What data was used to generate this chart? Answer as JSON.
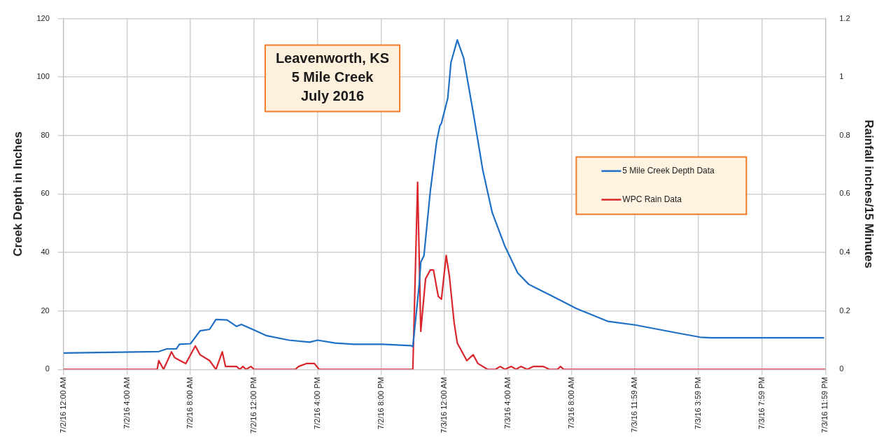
{
  "chart_data": {
    "type": "line",
    "title": "Leavenworth, KS\n5 Mile Creek\nJuly 2016",
    "ylabel": "Creek Depth in Inches",
    "y2label": "Rainfall inches/15 Minutes",
    "xlim": [
      "2016-07-02T00:00",
      "2016-07-03T23:59"
    ],
    "xticks": [
      {
        "value": "2016-07-02T00:00",
        "label": "7/2/16 12:00 AM"
      },
      {
        "value": "2016-07-02T04:00",
        "label": "7/2/16 4:00 AM"
      },
      {
        "value": "2016-07-02T08:00",
        "label": "7/2/16 8:00 AM"
      },
      {
        "value": "2016-07-02T12:00",
        "label": "7/2/16 12:00 PM"
      },
      {
        "value": "2016-07-02T16:00",
        "label": "7/2/16 4:00 PM"
      },
      {
        "value": "2016-07-02T20:00",
        "label": "7/2/16 8:00 PM"
      },
      {
        "value": "2016-07-03T00:00",
        "label": "7/3/16 12:00 AM"
      },
      {
        "value": "2016-07-03T04:00",
        "label": "7/3/16 4:00 AM"
      },
      {
        "value": "2016-07-03T08:00",
        "label": "7/3/16 8:00 AM"
      },
      {
        "value": "2016-07-03T11:59",
        "label": "7/3/16 11:59 AM"
      },
      {
        "value": "2016-07-03T15:59",
        "label": "7/3/16 3:59 PM"
      },
      {
        "value": "2016-07-03T19:59",
        "label": "7/3/16 7:59 PM"
      },
      {
        "value": "2016-07-03T23:59",
        "label": "7/3/16 11:59 PM"
      }
    ],
    "ylim": [
      0,
      120
    ],
    "yticks": [
      0,
      20,
      40,
      60,
      80,
      100,
      120
    ],
    "y2lim": [
      0,
      1.2
    ],
    "y2ticks": [
      0,
      0.2,
      0.4,
      0.6,
      0.8,
      1,
      1.2
    ],
    "grid": true,
    "legend": "right",
    "marker": "none",
    "line_style": "solid",
    "series": [
      {
        "name": "5 Mile Creek Depth Data",
        "color": "#1f6fc4",
        "x": [
          "2016-07-02T00:00",
          "2016-07-02T06:00",
          "2016-07-02T06:30",
          "2016-07-02T07:06",
          "2016-07-02T07:18",
          "2016-07-02T08:00",
          "2016-07-02T08:36",
          "2016-07-02T09:12",
          "2016-07-02T09:36",
          "2016-07-02T10:18",
          "2016-07-02T10:54",
          "2016-07-02T11:12",
          "2016-07-02T11:54",
          "2016-07-02T12:48",
          "2016-07-02T14:12",
          "2016-07-02T15:30",
          "2016-07-02T16:00",
          "2016-07-02T17:06",
          "2016-07-02T18:18",
          "2016-07-02T20:06",
          "2016-07-02T21:54",
          "2016-07-02T22:00",
          "2016-07-02T22:24",
          "2016-07-02T22:30",
          "2016-07-02T22:42",
          "2016-07-02T23:06",
          "2016-07-02T23:30",
          "2016-07-02T23:42",
          "2016-07-02T23:48",
          "2016-07-03T00:12",
          "2016-07-03T00:24",
          "2016-07-03T00:48",
          "2016-07-03T01:12",
          "2016-07-03T01:48",
          "2016-07-03T02:24",
          "2016-07-03T03:00",
          "2016-07-03T03:48",
          "2016-07-03T04:36",
          "2016-07-03T05:18",
          "2016-07-03T06:48",
          "2016-07-03T08:18",
          "2016-07-03T10:18",
          "2016-07-03T12:00",
          "2016-07-03T14:36",
          "2016-07-03T16:06",
          "2016-07-03T16:48",
          "2016-07-03T23:54"
        ],
        "values": [
          5.6,
          6.1,
          7,
          7,
          8.6,
          8.8,
          13.2,
          13.7,
          17.1,
          16.9,
          14.7,
          15.4,
          13.7,
          11.5,
          10,
          9.3,
          10,
          9,
          8.6,
          8.6,
          8.1,
          7.8,
          29,
          36.7,
          38.9,
          61,
          78,
          83.3,
          84.2,
          92.8,
          105,
          112.7,
          106.5,
          87.9,
          68.3,
          53.6,
          42.1,
          33,
          29.1,
          25,
          20.8,
          16.4,
          15.2,
          12.5,
          11,
          10.8,
          10.8
        ]
      },
      {
        "name": "WPC Rain Data",
        "color": "#d9262c",
        "axis": "y2",
        "x": [
          "2016-07-02T00:00",
          "2016-07-02T05:54",
          "2016-07-02T06:00",
          "2016-07-02T06:18",
          "2016-07-02T06:48",
          "2016-07-02T07:00",
          "2016-07-02T07:42",
          "2016-07-02T08:18",
          "2016-07-02T08:36",
          "2016-07-02T09:12",
          "2016-07-02T09:36",
          "2016-07-02T10:00",
          "2016-07-02T10:12",
          "2016-07-02T10:54",
          "2016-07-02T11:06",
          "2016-07-02T11:18",
          "2016-07-02T11:30",
          "2016-07-02T11:48",
          "2016-07-02T12:00",
          "2016-07-02T14:36",
          "2016-07-02T14:48",
          "2016-07-02T15:18",
          "2016-07-02T15:48",
          "2016-07-02T16:06",
          "2016-07-02T22:00",
          "2016-07-02T22:18",
          "2016-07-02T22:30",
          "2016-07-02T22:48",
          "2016-07-02T23:06",
          "2016-07-02T23:18",
          "2016-07-02T23:36",
          "2016-07-02T23:48",
          "2016-07-03T00:06",
          "2016-07-03T00:18",
          "2016-07-03T00:36",
          "2016-07-03T00:48",
          "2016-07-03T01:24",
          "2016-07-03T01:48",
          "2016-07-03T02:06",
          "2016-07-03T02:42",
          "2016-07-03T03:12",
          "2016-07-03T03:30",
          "2016-07-03T03:48",
          "2016-07-03T04:12",
          "2016-07-03T04:30",
          "2016-07-03T04:48",
          "2016-07-03T05:12",
          "2016-07-03T05:36",
          "2016-07-03T06:12",
          "2016-07-03T06:36",
          "2016-07-03T07:06",
          "2016-07-03T07:18",
          "2016-07-03T07:30",
          "2016-07-03T23:59"
        ],
        "values": [
          0,
          0,
          0.03,
          0,
          0.06,
          0.04,
          0.02,
          0.08,
          0.05,
          0.03,
          0,
          0.06,
          0.01,
          0.01,
          0,
          0.01,
          0,
          0.01,
          0,
          0,
          0.01,
          0.02,
          0.02,
          0,
          0,
          0.64,
          0.13,
          0.31,
          0.34,
          0.34,
          0.25,
          0.24,
          0.39,
          0.32,
          0.16,
          0.09,
          0.03,
          0.05,
          0.02,
          0,
          0,
          0.01,
          0,
          0.01,
          0,
          0.01,
          0,
          0.01,
          0.01,
          0,
          0,
          0.01,
          0,
          0
        ]
      }
    ]
  }
}
